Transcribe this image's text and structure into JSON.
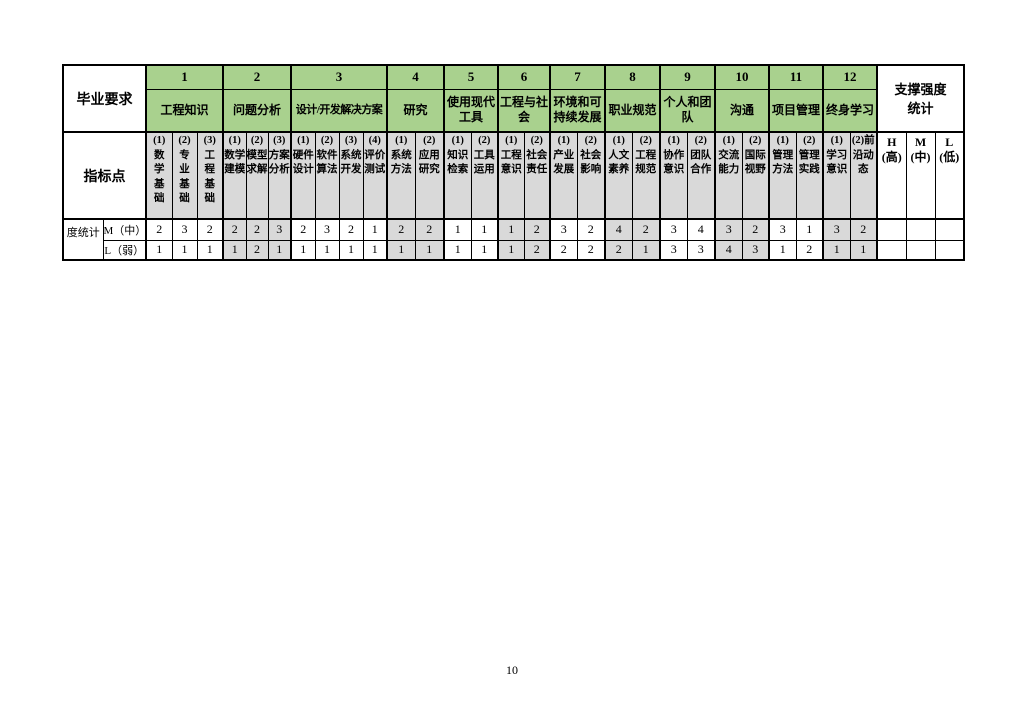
{
  "page_number": "10",
  "colors": {
    "header_green": "#a9d18e",
    "shade_gray": "#d9d9d9"
  },
  "table": {
    "corner_label": "毕业要求",
    "indicator_row_label": "指标点",
    "stat_label": "度统计",
    "m_row_label": "M（中）",
    "l_row_label": "L（弱）",
    "support": {
      "title": "支撑强度\n统计",
      "columns": [
        "H\n(高)",
        "M\n(中)",
        "L\n(低)"
      ]
    },
    "groups": [
      {
        "num": "1",
        "name": "工程知识",
        "shaded": false,
        "indicators": [
          "(1)\n数\n学\n基\n础",
          "(2)\n专\n业\n基\n础",
          "(3)\n工\n程\n基\n础"
        ],
        "m": [
          "2",
          "3",
          "2"
        ],
        "l": [
          "1",
          "1",
          "1"
        ]
      },
      {
        "num": "2",
        "name": "问题分析",
        "shaded": true,
        "indicators": [
          "(1)\n数学\n建模",
          "(2)\n模型\n求解",
          "(3)\n方案\n分析"
        ],
        "m": [
          "2",
          "2",
          "3"
        ],
        "l": [
          "1",
          "2",
          "1"
        ]
      },
      {
        "num": "3",
        "name": "设计/开发解决方案",
        "shaded": false,
        "indicators": [
          "(1)\n硬件\n设计",
          "(2)\n软件\n算法",
          "(3)\n系统\n开发",
          "(4)\n评价\n测试"
        ],
        "m": [
          "2",
          "3",
          "2",
          "1"
        ],
        "l": [
          "1",
          "1",
          "1",
          "1"
        ]
      },
      {
        "num": "4",
        "name": "研究",
        "shaded": true,
        "indicators": [
          "(1)\n系统\n方法",
          "(2)\n应用\n研究"
        ],
        "m": [
          "2",
          "2"
        ],
        "l": [
          "1",
          "1"
        ]
      },
      {
        "num": "5",
        "name": "使用现代\n工具",
        "shaded": false,
        "indicators": [
          "(1)\n知识\n检索",
          "(2)\n工具\n运用"
        ],
        "m": [
          "1",
          "1"
        ],
        "l": [
          "1",
          "1"
        ]
      },
      {
        "num": "6",
        "name": "工程与社\n会",
        "shaded": true,
        "indicators": [
          "(1)\n工程\n意识",
          "(2)\n社会\n责任"
        ],
        "m": [
          "1",
          "2"
        ],
        "l": [
          "1",
          "2"
        ]
      },
      {
        "num": "7",
        "name": "环境和可\n持续发展",
        "shaded": false,
        "indicators": [
          "(1)\n产业\n发展",
          "(2)\n社会\n影响"
        ],
        "m": [
          "3",
          "2"
        ],
        "l": [
          "2",
          "2"
        ]
      },
      {
        "num": "8",
        "name": "职业规范",
        "shaded": true,
        "indicators": [
          "(1)\n人文\n素养",
          "(2)\n工程\n规范"
        ],
        "m": [
          "4",
          "2"
        ],
        "l": [
          "2",
          "1"
        ]
      },
      {
        "num": "9",
        "name": "个人和团\n队",
        "shaded": false,
        "indicators": [
          "(1)\n协作\n意识",
          "(2)\n团队\n合作"
        ],
        "m": [
          "3",
          "4"
        ],
        "l": [
          "3",
          "3"
        ]
      },
      {
        "num": "10",
        "name": "沟通",
        "shaded": true,
        "indicators": [
          "(1)\n交流\n能力",
          "(2)\n国际\n视野"
        ],
        "m": [
          "3",
          "2"
        ],
        "l": [
          "4",
          "3"
        ]
      },
      {
        "num": "11",
        "name": "项目管理",
        "shaded": false,
        "indicators": [
          "(1)\n管理\n方法",
          "(2)\n管理\n实践"
        ],
        "m": [
          "3",
          "1"
        ],
        "l": [
          "1",
          "2"
        ]
      },
      {
        "num": "12",
        "name": "终身学习",
        "shaded": true,
        "indicators": [
          "(1)\n学习\n意识",
          "(2)前\n沿动\n态"
        ],
        "m": [
          "3",
          "2"
        ],
        "l": [
          "1",
          "1"
        ]
      }
    ]
  }
}
